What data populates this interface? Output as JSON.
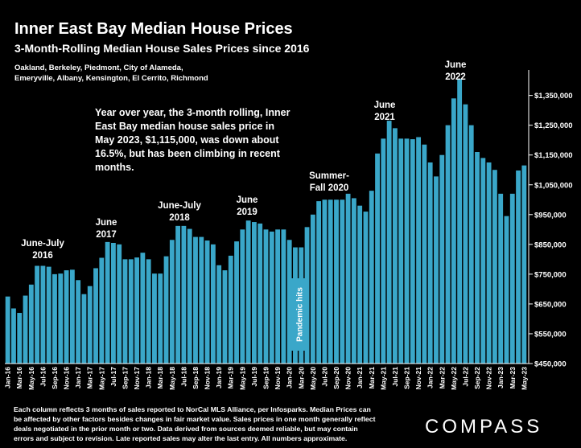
{
  "header": {
    "title": "Inner East Bay Median House Prices",
    "subtitle": "3-Month-Rolling Median House Sales Prices since 2016",
    "region_lines": [
      "Oakland,  Berkeley,  Piedmont,  City  of  Alameda,",
      "Emeryville, Albany, Kensington, El Cerrito, Richmond"
    ]
  },
  "note": "Year over year, the 3-month rolling, Inner East Bay median house sales price in May 2023, $1,115,000, was down about 16.5%, but has been climbing in recent months.",
  "annotations": {
    "peak_2016": [
      "June-July",
      "2016"
    ],
    "peak_2017": [
      "June",
      "2017"
    ],
    "peak_2018": [
      "June-July",
      "2018"
    ],
    "peak_2019": [
      "June",
      "2019"
    ],
    "peak_2020": [
      "Summer-",
      "Fall 2020"
    ],
    "peak_2021": [
      "June",
      "2021"
    ],
    "peak_2022": [
      "June",
      "2022"
    ],
    "pandemic": "Pandemic hits"
  },
  "footer_lines": [
    "Each column reflects 3 months of sales reported to NorCal MLS Alliance, per Infosparks. Median Prices can",
    "be affected by other factors besides changes in fair market value. Sales prices in one month generally reflect",
    "deals negotiated in the prior month or two. Data derived from sources deemed reliable, but may contain",
    "errors and subject to revision. Late reported sales may alter the last entry. All numbers approximate."
  ],
  "brand": "COMPASS",
  "colors": {
    "bar": "#3aa7c9",
    "background": "#000000",
    "text": "#ffffff"
  },
  "chart_data": {
    "type": "bar",
    "title": "Inner East Bay Median House Prices",
    "subtitle": "3-Month-Rolling Median House Sales Prices since 2016",
    "xlabel": "",
    "ylabel": "",
    "ylim": [
      450000,
      1430000
    ],
    "y_axis_side": "right",
    "y_ticks": [
      450000,
      550000,
      650000,
      750000,
      850000,
      950000,
      1050000,
      1150000,
      1250000,
      1350000
    ],
    "y_tick_labels": [
      "$450,000",
      "$550,000",
      "$650,000",
      "$750,000",
      "$850,000",
      "$950,000",
      "$1,050,000",
      "$1,150,000",
      "$1,250,000",
      "$1,350,000"
    ],
    "x_tick_labels": [
      "Jan-16",
      "Mar-16",
      "May-16",
      "Jul-16",
      "Sep-16",
      "Nov-16",
      "Jan-17",
      "Mar-17",
      "May-17",
      "Jul-17",
      "Sep-17",
      "Nov-17",
      "Jan-18",
      "Mar-18",
      "May-18",
      "Jul-18",
      "Sep-18",
      "Nov-18",
      "Jan-19",
      "Mar-19",
      "May-19",
      "Jul-19",
      "Sep-19",
      "Nov-19",
      "Jan-20",
      "Mar-20",
      "May-20",
      "Jul-20",
      "Sep-20",
      "Nov-20",
      "Jan-21",
      "Mar-21",
      "May-21",
      "Jul-21",
      "Sep-21",
      "Nov-21",
      "Jan-22",
      "Mar-22",
      "May-22",
      "Jul-22",
      "Sep-22",
      "Nov-22",
      "Jan-23",
      "Mar-23",
      "May-23"
    ],
    "categories": [
      "Jan-16",
      "Feb-16",
      "Mar-16",
      "Apr-16",
      "May-16",
      "Jun-16",
      "Jul-16",
      "Aug-16",
      "Sep-16",
      "Oct-16",
      "Nov-16",
      "Dec-16",
      "Jan-17",
      "Feb-17",
      "Mar-17",
      "Apr-17",
      "May-17",
      "Jun-17",
      "Jul-17",
      "Aug-17",
      "Sep-17",
      "Oct-17",
      "Nov-17",
      "Dec-17",
      "Jan-18",
      "Feb-18",
      "Mar-18",
      "Apr-18",
      "May-18",
      "Jun-18",
      "Jul-18",
      "Aug-18",
      "Sep-18",
      "Oct-18",
      "Nov-18",
      "Dec-18",
      "Jan-19",
      "Feb-19",
      "Mar-19",
      "Apr-19",
      "May-19",
      "Jun-19",
      "Jul-19",
      "Aug-19",
      "Sep-19",
      "Oct-19",
      "Nov-19",
      "Dec-19",
      "Jan-20",
      "Feb-20",
      "Mar-20",
      "Apr-20",
      "May-20",
      "Jun-20",
      "Jul-20",
      "Aug-20",
      "Sep-20",
      "Oct-20",
      "Nov-20",
      "Dec-20",
      "Jan-21",
      "Feb-21",
      "Mar-21",
      "Apr-21",
      "May-21",
      "Jun-21",
      "Jul-21",
      "Aug-21",
      "Sep-21",
      "Oct-21",
      "Nov-21",
      "Dec-21",
      "Jan-22",
      "Feb-22",
      "Mar-22",
      "Apr-22",
      "May-22",
      "Jun-22",
      "Jul-22",
      "Aug-22",
      "Sep-22",
      "Oct-22",
      "Nov-22",
      "Dec-22",
      "Jan-23",
      "Feb-23",
      "Mar-23",
      "Apr-23",
      "May-23"
    ],
    "values": [
      675000,
      635000,
      620000,
      678000,
      715000,
      778000,
      778000,
      775000,
      750000,
      752000,
      763000,
      765000,
      730000,
      683000,
      710000,
      770000,
      805000,
      858000,
      855000,
      850000,
      800000,
      800000,
      806000,
      822000,
      800000,
      752000,
      752000,
      810000,
      865000,
      912000,
      912000,
      902000,
      875000,
      875000,
      863000,
      850000,
      780000,
      763000,
      812000,
      860000,
      900000,
      930000,
      925000,
      920000,
      900000,
      893000,
      900000,
      900000,
      865000,
      840000,
      840000,
      908000,
      950000,
      995000,
      1000000,
      1000000,
      1000000,
      1000000,
      1020000,
      1005000,
      980000,
      960000,
      1030000,
      1155000,
      1205000,
      1265000,
      1240000,
      1205000,
      1205000,
      1203000,
      1210000,
      1185000,
      1125000,
      1078000,
      1150000,
      1250000,
      1340000,
      1405000,
      1320000,
      1250000,
      1160000,
      1140000,
      1125000,
      1100000,
      1020000,
      945000,
      1020000,
      1098000,
      1115000
    ]
  }
}
